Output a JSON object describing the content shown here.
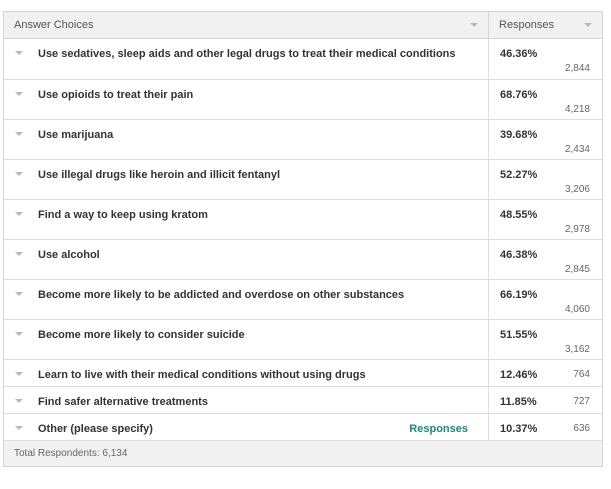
{
  "header": {
    "choices_label": "Answer Choices",
    "responses_label": "Responses"
  },
  "rows": [
    {
      "label": "Use sedatives, sleep aids and other legal drugs to treat their medical conditions",
      "percent": "46.36%",
      "count": "2,844"
    },
    {
      "label": "Use opioids to treat their pain",
      "percent": "68.76%",
      "count": "4,218"
    },
    {
      "label": "Use marijuana",
      "percent": "39.68%",
      "count": "2,434"
    },
    {
      "label": "Use illegal drugs like heroin and illicit fentanyl",
      "percent": "52.27%",
      "count": "3,206"
    },
    {
      "label": "Find a way to keep using kratom",
      "percent": "48.55%",
      "count": "2,978"
    },
    {
      "label": "Use alcohol",
      "percent": "46.38%",
      "count": "2,845"
    },
    {
      "label": "Become more likely to be addicted and overdose on other substances",
      "percent": "66.19%",
      "count": "4,060"
    },
    {
      "label": "Become more likely to consider suicide",
      "percent": "51.55%",
      "count": "3,162"
    },
    {
      "label": "Learn to live with their medical conditions without using drugs",
      "percent": "12.46%",
      "count": "764"
    },
    {
      "label": "Find safer alternative treatments",
      "percent": "11.85%",
      "count": "727"
    },
    {
      "label": "Other (please specify)",
      "percent": "10.37%",
      "count": "636",
      "link": "Responses"
    }
  ],
  "footer": {
    "total_label": "Total Respondents: 6,134"
  },
  "colors": {
    "link": "#1a8a7c",
    "header_bg": "#f1f1f1",
    "border": "#d6d6d6"
  }
}
